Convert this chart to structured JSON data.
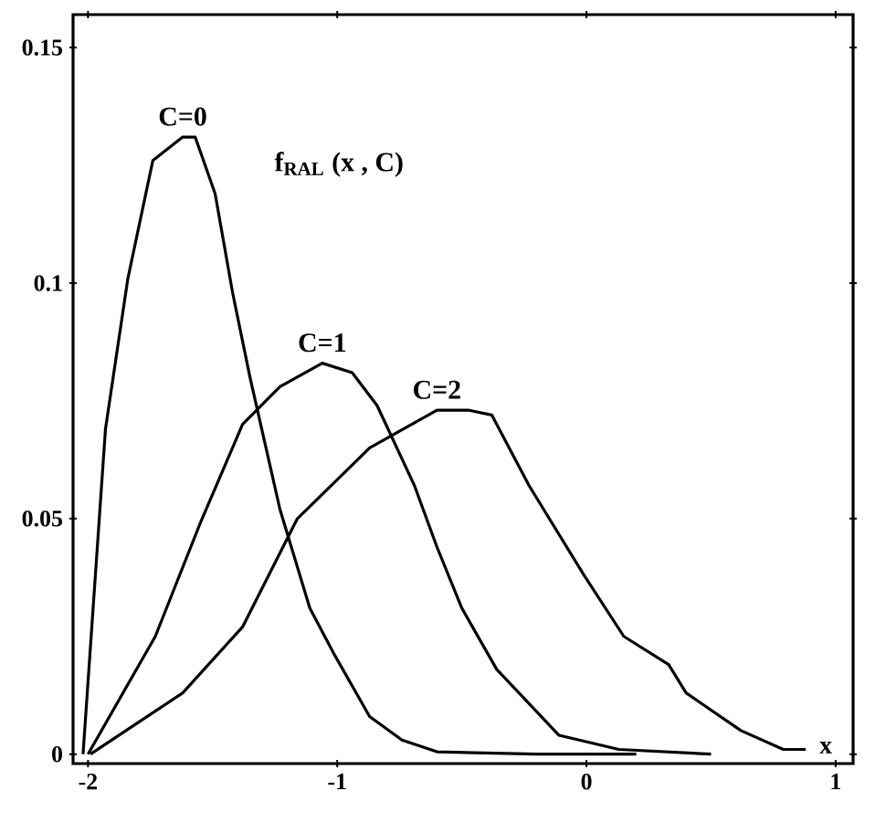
{
  "chart_data": {
    "type": "line",
    "xlabel": "x",
    "annotations": [
      "f$_{RAL}$ (x , C)"
    ],
    "xlim": [
      -2.06,
      1.07
    ],
    "ylim": [
      -0.002,
      0.157
    ],
    "xticks": [
      -2,
      -1,
      0,
      1
    ],
    "yticks": [
      0,
      0.05,
      0.1,
      0.15
    ],
    "grid": false,
    "legend": false,
    "marker": "none",
    "line_style": "solid",
    "series": [
      {
        "name": "C=0",
        "color": "#000000",
        "x": [
          -2.02,
          -1.93,
          -1.84,
          -1.74,
          -1.62,
          -1.57,
          -1.49,
          -1.42,
          -1.35,
          -1.23,
          -1.11,
          -1.01,
          -0.87,
          -0.74,
          -0.6,
          -0.2,
          0.2
        ],
        "values": [
          0,
          0.069,
          0.101,
          0.126,
          0.131,
          0.131,
          0.119,
          0.098,
          0.08,
          0.052,
          0.031,
          0.021,
          0.008,
          0.003,
          0.0005,
          0,
          0
        ]
      },
      {
        "name": "C=1",
        "color": "#000000",
        "x": [
          -2.0,
          -1.73,
          -1.55,
          -1.38,
          -1.23,
          -1.06,
          -0.94,
          -0.84,
          -0.69,
          -0.6,
          -0.5,
          -0.36,
          -0.11,
          0.13,
          0.5
        ],
        "values": [
          0,
          0.025,
          0.049,
          0.07,
          0.078,
          0.083,
          0.081,
          0.074,
          0.057,
          0.044,
          0.031,
          0.018,
          0.004,
          0.001,
          0
        ]
      },
      {
        "name": "C=2",
        "color": "#000000",
        "x": [
          -1.99,
          -1.62,
          -1.38,
          -1.16,
          -0.87,
          -0.6,
          -0.47,
          -0.38,
          -0.23,
          -0.01,
          0.15,
          0.33,
          0.4,
          0.62,
          0.79,
          0.88
        ],
        "values": [
          0,
          0.013,
          0.027,
          0.05,
          0.065,
          0.073,
          0.073,
          0.072,
          0.057,
          0.038,
          0.025,
          0.019,
          0.013,
          0.005,
          0.001,
          0.001
        ]
      }
    ]
  }
}
